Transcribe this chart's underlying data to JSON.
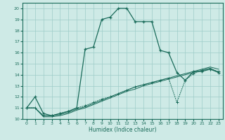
{
  "xlabel": "Humidex (Indice chaleur)",
  "bg_color": "#ceeae6",
  "grid_color": "#9eccc8",
  "line_color": "#1a6b5a",
  "xlim": [
    -0.5,
    23.5
  ],
  "ylim": [
    10,
    20.5
  ],
  "xticks": [
    0,
    1,
    2,
    3,
    4,
    5,
    6,
    7,
    8,
    9,
    10,
    11,
    12,
    13,
    14,
    15,
    16,
    17,
    18,
    19,
    20,
    21,
    22,
    23
  ],
  "yticks": [
    10,
    11,
    12,
    13,
    14,
    15,
    16,
    17,
    18,
    19,
    20
  ],
  "s1_x": [
    0,
    1,
    2,
    3,
    4,
    5,
    6,
    7,
    8,
    9,
    10,
    11,
    12,
    13,
    14,
    15,
    16,
    17,
    18,
    19,
    20,
    21,
    22,
    23
  ],
  "s1_y": [
    11.0,
    12.0,
    10.5,
    10.3,
    10.5,
    10.7,
    11.0,
    16.3,
    16.5,
    19.0,
    19.2,
    20.0,
    20.0,
    18.8,
    18.8,
    18.8,
    16.2,
    16.0,
    14.2,
    13.5,
    14.3,
    14.3,
    14.5,
    14.2
  ],
  "s2_x": [
    0,
    1,
    2,
    3,
    4,
    5,
    6,
    7,
    8,
    9,
    10,
    11,
    12,
    13,
    14,
    15,
    16,
    17,
    18,
    19,
    20,
    21,
    22,
    23
  ],
  "s2_y": [
    11.0,
    11.0,
    10.3,
    10.3,
    10.5,
    10.7,
    11.0,
    11.2,
    11.5,
    11.8,
    12.0,
    12.3,
    12.6,
    12.9,
    13.1,
    13.3,
    13.5,
    13.7,
    11.5,
    13.5,
    14.1,
    14.4,
    14.5,
    14.3
  ],
  "s3_x": [
    0,
    1,
    2,
    3,
    4,
    5,
    6,
    7,
    8,
    9,
    10,
    11,
    12,
    13,
    14,
    15,
    16,
    17,
    18,
    19,
    20,
    21,
    22,
    23
  ],
  "s3_y": [
    11.0,
    11.0,
    10.3,
    10.3,
    10.4,
    10.6,
    10.9,
    11.1,
    11.4,
    11.7,
    12.0,
    12.3,
    12.6,
    12.9,
    13.1,
    13.3,
    13.5,
    13.7,
    13.9,
    14.1,
    14.3,
    14.5,
    14.7,
    14.5
  ],
  "s4_x": [
    0,
    1,
    2,
    3,
    4,
    5,
    6,
    7,
    8,
    9,
    10,
    11,
    12,
    13,
    14,
    15,
    16,
    17,
    18,
    19,
    20,
    21,
    22,
    23
  ],
  "s4_y": [
    11.0,
    11.0,
    10.2,
    10.2,
    10.3,
    10.5,
    10.8,
    11.0,
    11.3,
    11.6,
    11.9,
    12.2,
    12.5,
    12.7,
    13.0,
    13.2,
    13.4,
    13.6,
    13.8,
    14.0,
    14.2,
    14.4,
    14.6,
    14.2
  ]
}
